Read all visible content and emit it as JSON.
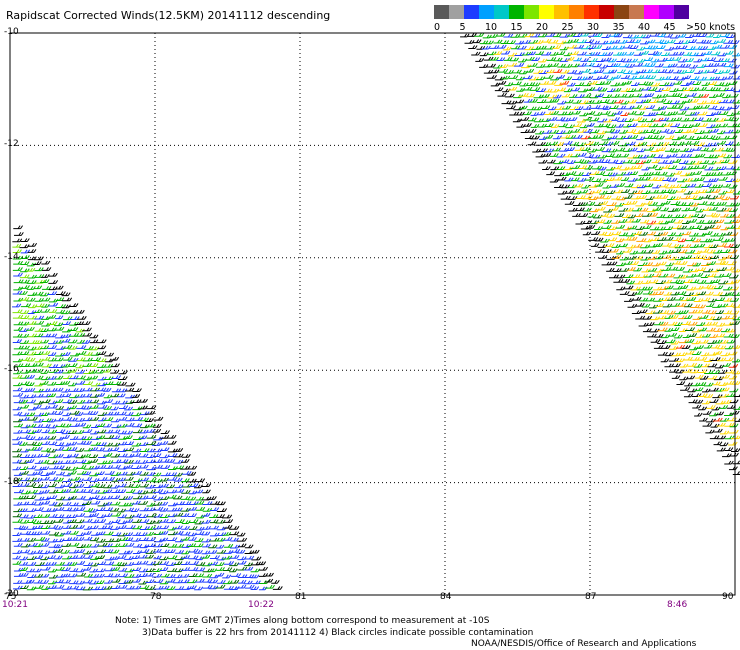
{
  "title": "Rapidscat Corrected Winds(12.5KM) 20141112 descending",
  "colorbar": {
    "colors": [
      "#5a5a5a",
      "#a0a0a0",
      "#1e3cff",
      "#00a0ff",
      "#00c8c8",
      "#00b400",
      "#7de600",
      "#ffff00",
      "#ffc000",
      "#ff8000",
      "#ff3000",
      "#c80000",
      "#8b4513",
      "#c87850",
      "#ff00ff",
      "#b000ff",
      "#5000a0"
    ],
    "labels": [
      "0",
      "5",
      "10",
      "15",
      "20",
      "25",
      "30",
      "35",
      "40",
      "45"
    ],
    "unit_label": ">50 knots"
  },
  "axes": {
    "lat_ticks": [
      "-10",
      "-12",
      "-14",
      "-16",
      "-18",
      "-20"
    ],
    "lon_ticks": [
      "75",
      "78",
      "81",
      "84",
      "87",
      "90"
    ],
    "lat_range": [
      -20,
      -10
    ],
    "lon_range": [
      75,
      90
    ],
    "grid": true
  },
  "times": {
    "left": "10:21",
    "middle": "10:22",
    "right": "8:46"
  },
  "notes": {
    "line1": "Note: 1) Times are GMT 2)Times along bottom correspond to measurement at -10S",
    "line2": "3)Data buffer is 22 hrs from 20141112 4) Black circles indicate possible contamination",
    "line3": "NOAA/NESDIS/Office of Research and Applications"
  }
}
